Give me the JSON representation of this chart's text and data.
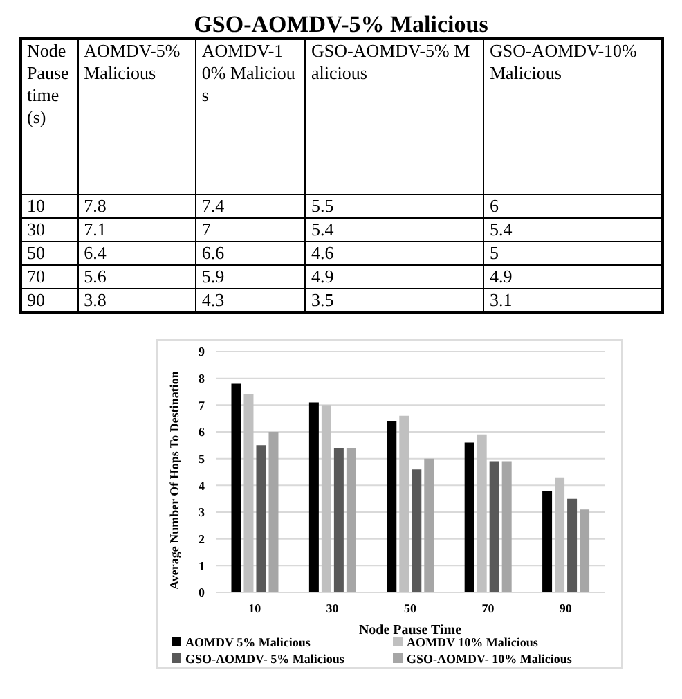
{
  "chart_data": [
    {
      "type": "heatmap",
      "title": "GSO-AOMDV-5% Malicious",
      "ylabel": "Node Pause time (s)",
      "categories": [
        "AOMDV-5% Malicious",
        "AOMDV-10% Malicious",
        "GSO-AOMDV-5% Malicious",
        "GSO-AOMDV-10% Malicious"
      ],
      "y_categories": [
        "10",
        "30",
        "50",
        "70",
        "90"
      ],
      "cells": [
        [
          7.8,
          7.4,
          5.5,
          6
        ],
        [
          7.1,
          7,
          5.4,
          5.4
        ],
        [
          6.4,
          6.6,
          4.6,
          5
        ],
        [
          5.6,
          5.9,
          4.9,
          4.9
        ],
        [
          3.8,
          4.3,
          3.5,
          3.1
        ]
      ],
      "data_labels": true
    },
    {
      "type": "bar",
      "xlabel": "Node Pause Time",
      "ylabel": "Average Number Of Hops To Destination",
      "categories": [
        "10",
        "30",
        "50",
        "70",
        "90"
      ],
      "series": [
        {
          "name": "AOMDV 5% Malicious",
          "color": "#000000",
          "values": [
            7.8,
            7.1,
            6.4,
            5.6,
            3.8
          ]
        },
        {
          "name": "AOMDV 10% Malicious",
          "color": "#c0c0c0",
          "values": [
            7.4,
            7,
            6.6,
            5.9,
            4.3
          ]
        },
        {
          "name": "GSO-AOMDV- 5% Malicious",
          "color": "#595959",
          "values": [
            5.5,
            5.4,
            4.6,
            4.9,
            3.5
          ]
        },
        {
          "name": "GSO-AOMDV- 10% Malicious",
          "color": "#a6a6a6",
          "values": [
            6,
            5.4,
            5,
            4.9,
            3.1
          ]
        }
      ],
      "ylim": [
        0,
        9
      ],
      "yticks": [
        0,
        1,
        2,
        3,
        4,
        5,
        6,
        7,
        8,
        9
      ],
      "grid": "y",
      "legend": "bottom"
    }
  ]
}
